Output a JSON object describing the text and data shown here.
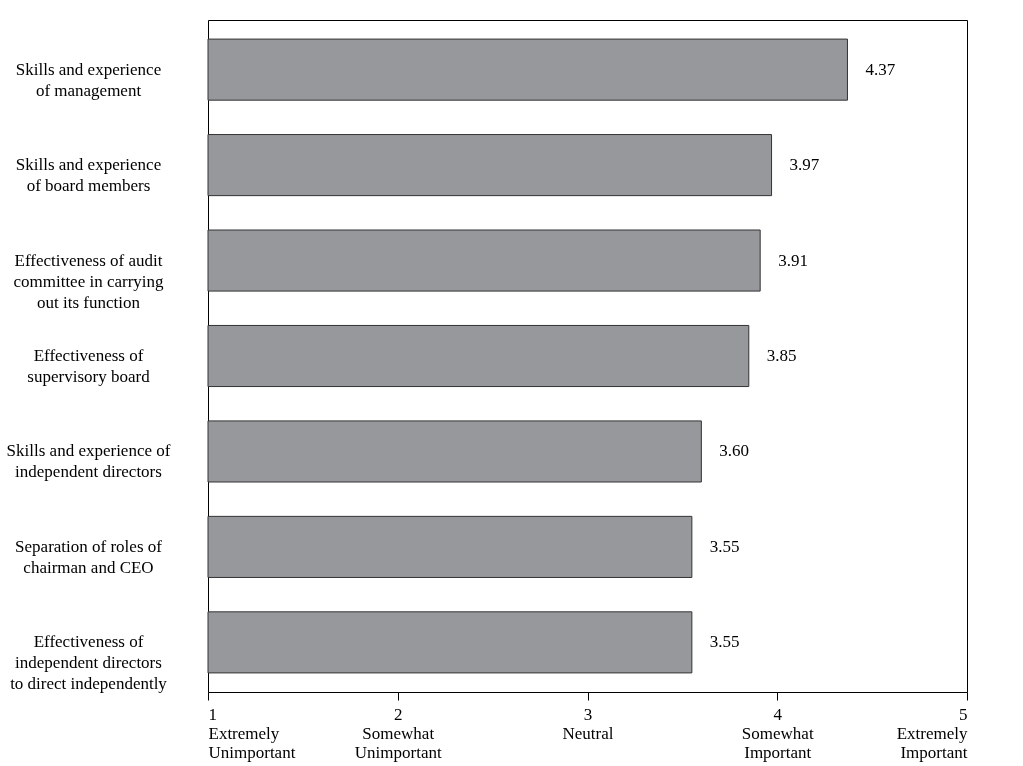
{
  "chart_data": {
    "type": "bar",
    "orientation": "horizontal",
    "categories": [
      "Skills and experience\nof management",
      "Skills and experience\nof board members",
      "Effectiveness of audit\ncommittee in carrying\nout its function",
      "Effectiveness of\nsupervisory board",
      "Skills and experience of\nindependent directors",
      "Separation of roles of\nchairman and CEO",
      "Effectiveness of\nindependent directors\nto direct independently"
    ],
    "values": [
      4.37,
      3.97,
      3.91,
      3.85,
      3.6,
      3.55,
      3.55
    ],
    "color": "#97989b",
    "xlim": [
      1,
      5
    ],
    "xticks": [
      {
        "value": 1,
        "label": "1\nExtremely\nUnimportant"
      },
      {
        "value": 2,
        "label": "2\nSomewhat\nUnimportant"
      },
      {
        "value": 3,
        "label": "3\nNeutral"
      },
      {
        "value": 4,
        "label": "4\nSomewhat\nImportant"
      },
      {
        "value": 5,
        "label": "5\nExtremely\nImportant"
      }
    ],
    "value_labels": [
      "4.37",
      "3.97",
      "3.91",
      "3.85",
      "3.60",
      "3.55",
      "3.55"
    ],
    "grid": false
  }
}
